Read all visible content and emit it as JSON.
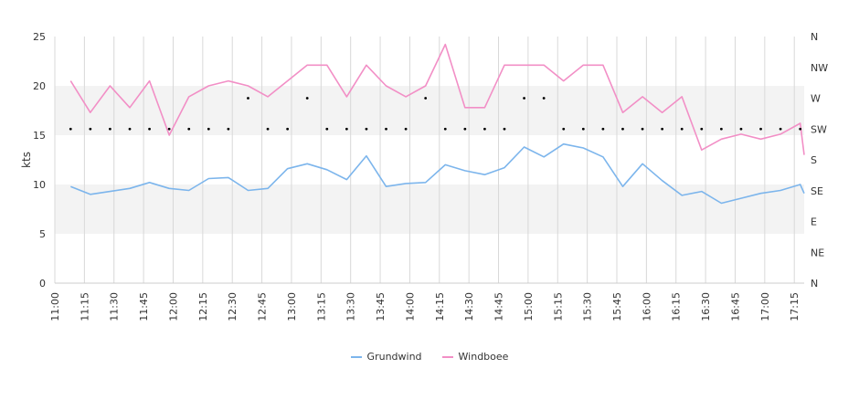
{
  "chart_data": {
    "type": "line",
    "ylabel": "kts",
    "ylim": [
      0,
      25
    ],
    "y_ticks": [
      "0",
      "5",
      "10",
      "15",
      "20",
      "25"
    ],
    "right_ticks": [
      "N",
      "NE",
      "E",
      "SE",
      "S",
      "SW",
      "W",
      "NW",
      "N"
    ],
    "x_ticks": [
      "11:00",
      "11:15",
      "11:30",
      "11:45",
      "12:00",
      "12:15",
      "12:30",
      "12:45",
      "13:00",
      "13:15",
      "13:30",
      "13:45",
      "14:00",
      "14:15",
      "14:30",
      "14:45",
      "15:00",
      "15:15",
      "15:30",
      "15:45",
      "16:00",
      "16:15",
      "16:30",
      "16:45",
      "17:00",
      "17:15"
    ],
    "x_range": [
      "11:00",
      "17:20"
    ],
    "bands": [
      [
        5,
        10
      ],
      [
        15,
        20
      ]
    ],
    "x": [
      "11:08",
      "11:18",
      "11:28",
      "11:38",
      "11:48",
      "11:58",
      "12:08",
      "12:18",
      "12:28",
      "12:38",
      "12:48",
      "12:58",
      "13:08",
      "13:18",
      "13:28",
      "13:38",
      "13:48",
      "13:58",
      "14:08",
      "14:18",
      "14:28",
      "14:38",
      "14:48",
      "14:58",
      "15:08",
      "15:18",
      "15:28",
      "15:38",
      "15:48",
      "15:58",
      "16:08",
      "16:18",
      "16:28",
      "16:38",
      "16:48",
      "16:58",
      "17:08",
      "17:18",
      "17:20"
    ],
    "series": [
      {
        "name": "Grundwind",
        "color": "#7cb5ec",
        "values": [
          9.8,
          9.0,
          9.3,
          9.6,
          10.2,
          9.6,
          9.4,
          10.6,
          10.7,
          9.4,
          9.6,
          11.6,
          12.1,
          11.5,
          10.5,
          12.9,
          9.8,
          10.1,
          10.2,
          12.0,
          11.4,
          11.0,
          11.7,
          13.8,
          12.8,
          14.1,
          13.7,
          12.8,
          9.8,
          12.1,
          10.4,
          8.9,
          9.3,
          8.1,
          8.6,
          9.1,
          9.4,
          10.0,
          9.1
        ]
      },
      {
        "name": "Windboee",
        "color": "#f28fc6",
        "values": [
          20.5,
          17.3,
          20.0,
          17.8,
          20.5,
          15.0,
          18.9,
          20.0,
          20.5,
          20.0,
          18.9,
          20.5,
          22.1,
          22.1,
          18.9,
          22.1,
          20.0,
          18.9,
          20.0,
          24.2,
          17.8,
          17.8,
          22.1,
          22.1,
          22.1,
          20.5,
          22.1,
          22.1,
          17.3,
          18.9,
          17.3,
          18.9,
          13.5,
          14.6,
          15.1,
          14.6,
          15.1,
          16.2,
          13.0
        ]
      }
    ],
    "direction_markers": [
      "SW",
      "SW",
      "SW",
      "SW",
      "SW",
      "SW",
      "SW",
      "SW",
      "SW",
      "W",
      "SW",
      "SW",
      "W",
      "SW",
      "SW",
      "SW",
      "SW",
      "SW",
      "W",
      "SW",
      "SW",
      "SW",
      "SW",
      "W",
      "W",
      "SW",
      "SW",
      "SW",
      "SW",
      "SW",
      "SW",
      "SW",
      "SW",
      "SW",
      "SW",
      "SW",
      "SW",
      "SW"
    ],
    "grid": true,
    "legend_position": "bottom"
  }
}
